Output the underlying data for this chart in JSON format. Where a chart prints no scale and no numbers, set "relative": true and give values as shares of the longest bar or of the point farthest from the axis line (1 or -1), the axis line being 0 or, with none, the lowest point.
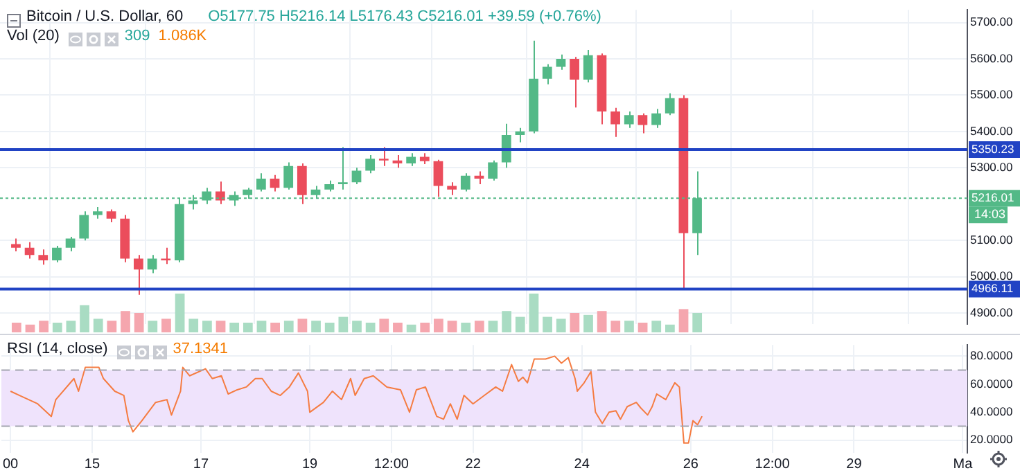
{
  "chart_data": [
    {
      "type": "candlestick",
      "title": "Bitcoin / U.S. Dollar, 60",
      "subtitle": "O5177.75 H5216.14 L5176.43 C5216.01 +39.59 (+0.76%)",
      "x": [
        "--04-13T15:00",
        "--04-13T21:00",
        "--04-14T03:00",
        "--04-14T09:00",
        "--04-14T15:00",
        "--04-14T21:00",
        "--04-15T03:00",
        "--04-15T09:00",
        "--04-15T15:00",
        "--04-15T21:00",
        "--04-16T03:00",
        "--04-16T09:00",
        "--04-16T15:00",
        "--04-16T21:00",
        "--04-17T03:00",
        "--04-17T09:00",
        "--04-17T15:00",
        "--04-17T21:00",
        "--04-18T03:00",
        "--04-18T09:00",
        "--04-18T15:00",
        "--04-18T21:00",
        "--04-19T03:00",
        "--04-19T09:00",
        "--04-19T15:00",
        "--04-19T21:00",
        "--04-20T03:00",
        "--04-20T09:00",
        "--04-20T15:00",
        "--04-20T21:00",
        "--04-21T03:00",
        "--04-21T09:00",
        "--04-21T15:00",
        "--04-21T21:00",
        "--04-22T03:00",
        "--04-22T09:00",
        "--04-22T15:00",
        "--04-22T21:00",
        "--04-23T03:00",
        "--04-23T09:00",
        "--04-23T15:00",
        "--04-23T21:00",
        "--04-24T03:00",
        "--04-24T09:00",
        "--04-24T15:00",
        "--04-24T21:00",
        "--04-25T03:00",
        "--04-25T09:00",
        "--04-25T15:00",
        "--04-25T21:00",
        "--04-26T03:00"
      ],
      "ohlc": [
        [
          5090,
          5105,
          5070,
          5080
        ],
        [
          5080,
          5095,
          5050,
          5060
        ],
        [
          5060,
          5075,
          5033,
          5045
        ],
        [
          5045,
          5085,
          5040,
          5080
        ],
        [
          5080,
          5110,
          5070,
          5105
        ],
        [
          5105,
          5180,
          5100,
          5170
        ],
        [
          5170,
          5192,
          5160,
          5180
        ],
        [
          5180,
          5185,
          5150,
          5160
        ],
        [
          5160,
          5170,
          5040,
          5050
        ],
        [
          5050,
          5060,
          4950,
          5020
        ],
        [
          5020,
          5060,
          5010,
          5050
        ],
        [
          5050,
          5080,
          5035,
          5045
        ],
        [
          5045,
          5215,
          5040,
          5200
        ],
        [
          5200,
          5225,
          5185,
          5210
        ],
        [
          5210,
          5245,
          5200,
          5235
        ],
        [
          5235,
          5262,
          5200,
          5210
        ],
        [
          5210,
          5235,
          5195,
          5225
        ],
        [
          5225,
          5245,
          5215,
          5240
        ],
        [
          5240,
          5285,
          5235,
          5270
        ],
        [
          5270,
          5280,
          5235,
          5245
        ],
        [
          5245,
          5315,
          5240,
          5305
        ],
        [
          5305,
          5312,
          5200,
          5225
        ],
        [
          5225,
          5250,
          5215,
          5240
        ],
        [
          5240,
          5265,
          5235,
          5255
        ],
        [
          5255,
          5357,
          5240,
          5260
        ],
        [
          5260,
          5300,
          5255,
          5292
        ],
        [
          5292,
          5335,
          5285,
          5325
        ],
        [
          5325,
          5357,
          5305,
          5320
        ],
        [
          5320,
          5335,
          5300,
          5312
        ],
        [
          5312,
          5340,
          5305,
          5330
        ],
        [
          5330,
          5340,
          5310,
          5318
        ],
        [
          5318,
          5322,
          5220,
          5250
        ],
        [
          5250,
          5260,
          5225,
          5240
        ],
        [
          5240,
          5285,
          5235,
          5278
        ],
        [
          5278,
          5290,
          5255,
          5270
        ],
        [
          5270,
          5320,
          5265,
          5315
        ],
        [
          5315,
          5421,
          5300,
          5390
        ],
        [
          5390,
          5410,
          5370,
          5400
        ],
        [
          5400,
          5650,
          5395,
          5545
        ],
        [
          5545,
          5585,
          5530,
          5578
        ],
        [
          5578,
          5612,
          5570,
          5600
        ],
        [
          5600,
          5605,
          5466,
          5543
        ],
        [
          5543,
          5625,
          5535,
          5610
        ],
        [
          5610,
          5615,
          5420,
          5455
        ],
        [
          5455,
          5465,
          5385,
          5420
        ],
        [
          5420,
          5455,
          5410,
          5445
        ],
        [
          5445,
          5450,
          5395,
          5418
        ],
        [
          5418,
          5462,
          5410,
          5450
        ],
        [
          5450,
          5505,
          5445,
          5492
        ],
        [
          5492,
          5500,
          4966,
          5120
        ],
        [
          5120,
          5290,
          5060,
          5216.01
        ]
      ],
      "colors": [
        "#eb4d5c",
        "#eb4d5c",
        "#eb4d5c",
        "#53b987",
        "#53b987",
        "#53b987",
        "#53b987",
        "#eb4d5c",
        "#eb4d5c",
        "#eb4d5c",
        "#53b987",
        "#eb4d5c",
        "#53b987",
        "#53b987",
        "#53b987",
        "#eb4d5c",
        "#53b987",
        "#53b987",
        "#53b987",
        "#eb4d5c",
        "#53b987",
        "#eb4d5c",
        "#53b987",
        "#53b987",
        "#53b987",
        "#53b987",
        "#53b987",
        "#eb4d5c",
        "#eb4d5c",
        "#53b987",
        "#eb4d5c",
        "#eb4d5c",
        "#eb4d5c",
        "#53b987",
        "#eb4d5c",
        "#53b987",
        "#53b987",
        "#53b987",
        "#53b987",
        "#53b987",
        "#53b987",
        "#eb4d5c",
        "#53b987",
        "#eb4d5c",
        "#eb4d5c",
        "#53b987",
        "#eb4d5c",
        "#53b987",
        "#53b987",
        "#eb4d5c",
        "#53b987"
      ],
      "xlim": [
        "--04-13T08:00",
        "--05-01T02:00"
      ],
      "xticks": [
        {
          "value": "--04-13T12:00",
          "label": null
        },
        {
          "value": "--04-15",
          "label": null
        },
        {
          "value": "--04-17",
          "label": null
        },
        {
          "value": "--04-19",
          "label": null
        },
        {
          "value": "--04-20T12:00",
          "label": null
        },
        {
          "value": "--04-22",
          "label": null
        },
        {
          "value": "--04-24",
          "label": null
        },
        {
          "value": "--04-26",
          "label": null
        },
        {
          "value": "--04-27T12:00",
          "label": null
        },
        {
          "value": "--04-29",
          "label": null
        },
        {
          "value": "--05-01",
          "label": null
        }
      ],
      "ylim": [
        4870,
        5735
      ],
      "yticks": [
        {
          "value": 4900,
          "label": "4900.00"
        },
        {
          "value": 5000,
          "label": "5000.00"
        },
        {
          "value": 5100,
          "label": "5100.00"
        },
        {
          "value": 5300,
          "label": "5300.00"
        },
        {
          "value": 5400,
          "label": "5400.00"
        },
        {
          "value": 5500,
          "label": "5500.00"
        },
        {
          "value": 5600,
          "label": "5600.00"
        },
        {
          "value": 5700,
          "label": "5700.00"
        }
      ],
      "tick_labels": "y",
      "grid": true,
      "ref_lines": [
        {
          "axis": "y",
          "value": 5350.23,
          "label": "5350.23",
          "color": "#2143c4",
          "line_style": "solid"
        },
        {
          "axis": "y",
          "value": 4966.11,
          "label": "4966.11",
          "color": "#2143c4",
          "line_style": "solid"
        },
        {
          "axis": "y",
          "value": 5216.01,
          "label": "5216.01",
          "color": "#53b987",
          "line_style": "dotted"
        }
      ],
      "annotations": [
        "14:03"
      ]
    },
    {
      "type": "bar",
      "title": "Vol (20)",
      "relative": true,
      "tick_labels": false,
      "categories": [
        null,
        null,
        null,
        null,
        null,
        null,
        null,
        null,
        null,
        null,
        null,
        null,
        null,
        null,
        null,
        null,
        null,
        null,
        null,
        null,
        null,
        null,
        null,
        null,
        null,
        null,
        null,
        null,
        null,
        null,
        null,
        null,
        null,
        null,
        null,
        null,
        null,
        null,
        null,
        null,
        null,
        null,
        null,
        null,
        null,
        null,
        null,
        null,
        null,
        null,
        null
      ],
      "values": [
        0.25,
        0.2,
        0.3,
        0.25,
        0.3,
        0.7,
        0.35,
        0.3,
        0.55,
        0.5,
        0.3,
        0.35,
        1,
        0.35,
        0.3,
        0.3,
        0.25,
        0.25,
        0.3,
        0.25,
        0.3,
        0.35,
        0.3,
        0.25,
        0.4,
        0.3,
        0.25,
        0.35,
        0.25,
        0.2,
        0.25,
        0.35,
        0.3,
        0.25,
        0.3,
        0.3,
        0.55,
        0.4,
        1,
        0.4,
        0.35,
        0.5,
        0.45,
        0.55,
        0.3,
        0.3,
        0.25,
        0.3,
        0.2,
        0.6,
        0.5
      ],
      "colors": [
        "#f5a6ae",
        "#f5a6ae",
        "#f5a6ae",
        "#a9dcc3",
        "#a9dcc3",
        "#a9dcc3",
        "#a9dcc3",
        "#f5a6ae",
        "#f5a6ae",
        "#f5a6ae",
        "#a9dcc3",
        "#f5a6ae",
        "#a9dcc3",
        "#a9dcc3",
        "#a9dcc3",
        "#f5a6ae",
        "#a9dcc3",
        "#a9dcc3",
        "#a9dcc3",
        "#f5a6ae",
        "#a9dcc3",
        "#f5a6ae",
        "#a9dcc3",
        "#a9dcc3",
        "#a9dcc3",
        "#a9dcc3",
        "#a9dcc3",
        "#f5a6ae",
        "#f5a6ae",
        "#a9dcc3",
        "#f5a6ae",
        "#f5a6ae",
        "#f5a6ae",
        "#a9dcc3",
        "#f5a6ae",
        "#a9dcc3",
        "#a9dcc3",
        "#a9dcc3",
        "#a9dcc3",
        "#a9dcc3",
        "#a9dcc3",
        "#f5a6ae",
        "#a9dcc3",
        "#f5a6ae",
        "#f5a6ae",
        "#a9dcc3",
        "#f5a6ae",
        "#a9dcc3",
        "#a9dcc3",
        "#f5a6ae",
        "#a9dcc3"
      ],
      "annotations": [
        "309",
        "1.086K"
      ]
    },
    {
      "type": "line",
      "title": "RSI (14, close)",
      "x": [
        "--04-13T12:00",
        "--04-13T16:00",
        "--04-14T00:00",
        "--04-14T06:00",
        "--04-14T08:00",
        "--04-14T16:00",
        "--04-14T18:00",
        "--04-14T21:00",
        "--04-15T03:00",
        "--04-15T05:00",
        "--04-15T10:00",
        "--04-15T14:00",
        "--04-15T16:00",
        "--04-15T18:00",
        "--04-15T22:00",
        "--04-16T04:00",
        "--04-16T09:00",
        "--04-16T11:00",
        "--04-16T15:00",
        "--04-16T16:00",
        "--04-16T19:00",
        "--04-17T02:00",
        "--04-17T05:00",
        "--04-17T09:00",
        "--04-17T12:00",
        "--04-17T16:00",
        "--04-17T20:00",
        "--04-18T00:00",
        "--04-18T03:00",
        "--04-18T07:00",
        "--04-18T11:00",
        "--04-18T15:00",
        "--04-18T19:00",
        "--04-18T23:00",
        "--04-19T00:00",
        "--04-19T06:00",
        "--04-19T10:00",
        "--04-19T14:00",
        "--04-19T18:00",
        "--04-19T20:00",
        "--04-20T00:00",
        "--04-20T04:00",
        "--04-20T10:00",
        "--04-20T16:00",
        "--04-20T20:00",
        "--04-20T23:00",
        "--04-21T03:00",
        "--04-21T08:00",
        "--04-21T11:00",
        "--04-21T14:00",
        "--04-21T17:00",
        "--04-21T20:00",
        "--04-22T00:00",
        "--04-22T05:00",
        "--04-22T10:00",
        "--04-22T13:00",
        "--04-22T17:00",
        "--04-22T20:00",
        "--04-22T22:00",
        "--04-23T00:00",
        "--04-23T03:00",
        "--04-23T08:00",
        "--04-23T12:00",
        "--04-23T15:00",
        "--04-23T18:00",
        "--04-23T21:00",
        "--04-23T22:00",
        "--04-24T01:00",
        "--04-24T04:00",
        "--04-24T06:00",
        "--04-24T09:00",
        "--04-24T12:00",
        "--04-24T15:00",
        "--04-24T17:00",
        "--04-24T20:00",
        "--04-25T00:00",
        "--04-25T02:00",
        "--04-25T05:00",
        "--04-25T07:00",
        "--04-25T09:00",
        "--04-25T13:00",
        "--04-25T17:00",
        "--04-25T19:00",
        "--04-25T21:00",
        "--04-25T23:00",
        "--04-26T01:00",
        "--04-26T03:00",
        "--04-26T05:00"
      ],
      "series": [
        {
          "color": "#f57c42",
          "values": [
            55,
            52,
            46,
            37,
            49,
            64,
            55,
            72,
            72,
            64,
            55,
            52,
            34,
            26,
            34,
            47,
            49,
            38,
            55,
            72,
            66,
            71,
            64,
            66,
            53,
            56,
            58,
            64,
            64,
            55,
            52,
            58,
            68,
            55,
            40,
            47,
            55,
            49,
            64,
            52,
            64,
            66,
            58,
            56,
            40,
            56,
            58,
            37,
            35,
            46,
            35,
            52,
            46,
            52,
            58,
            55,
            74,
            62,
            65,
            61,
            78,
            78,
            80,
            75,
            79,
            64,
            55,
            61,
            69,
            40,
            32,
            40,
            41,
            35,
            44,
            47,
            43,
            38,
            44,
            53,
            49,
            61,
            58,
            18,
            18,
            34,
            31,
            37.1341
          ]
        }
      ],
      "xlim": [
        "--04-13T08:00",
        "--05-01T02:00"
      ],
      "xticks": [
        {
          "value": "--04-13T12:00",
          "label": "00"
        },
        {
          "value": "--04-15",
          "label": "15"
        },
        {
          "value": "--04-17",
          "label": "17"
        },
        {
          "value": "--04-19",
          "label": "19"
        },
        {
          "value": "--04-20T12:00",
          "label": "12:00"
        },
        {
          "value": "--04-22",
          "label": "22"
        },
        {
          "value": "--04-24",
          "label": "24"
        },
        {
          "value": "--04-26",
          "label": "26"
        },
        {
          "value": "--04-27T12:00",
          "label": "12:00"
        },
        {
          "value": "--04-29",
          "label": "29"
        },
        {
          "value": "--05-01",
          "label": "Ma"
        }
      ],
      "ylim": [
        11,
        88
      ],
      "yticks": [
        {
          "value": 20,
          "label": "20.0000"
        },
        {
          "value": 40,
          "label": "40.0000"
        },
        {
          "value": 60,
          "label": "60.0000"
        },
        {
          "value": 80,
          "label": "80.0000"
        }
      ],
      "grid": true,
      "bands": [
        {
          "axis": "y",
          "from": 30,
          "to": 70,
          "color": "#efe3fc"
        }
      ],
      "ref_lines": [
        {
          "axis": "y",
          "value": 70,
          "color": "#a3a6af",
          "line_style": "dashed"
        },
        {
          "axis": "y",
          "value": 30,
          "color": "#a3a6af",
          "line_style": "dashed"
        }
      ],
      "annotations": [
        "37.1341"
      ]
    }
  ]
}
